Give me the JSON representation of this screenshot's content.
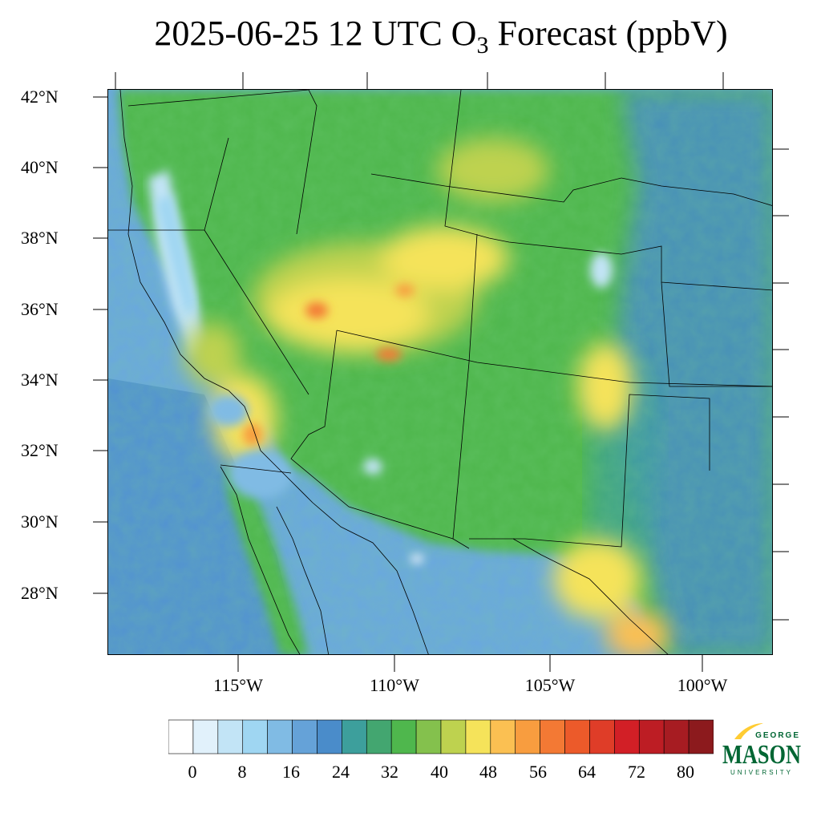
{
  "title": {
    "prefix": "2025-06-25 12 UTC O",
    "subscript": "3",
    "suffix": " Forecast (ppbV)"
  },
  "axes": {
    "lat_labels": [
      "42°N",
      "40°N",
      "38°N",
      "36°N",
      "34°N",
      "32°N",
      "30°N",
      "28°N"
    ],
    "lon_labels": [
      "115°W",
      "110°W",
      "105°W",
      "100°W"
    ]
  },
  "colorbar": {
    "unit": "ppbV",
    "labels": [
      "0",
      "8",
      "16",
      "24",
      "32",
      "40",
      "48",
      "56",
      "64",
      "72",
      "80"
    ],
    "colors": [
      "#ffffff",
      "#e1f1fb",
      "#c2e4f6",
      "#9fd6f2",
      "#80bbe4",
      "#65a2d8",
      "#4a8cca",
      "#3d9f9c",
      "#43a670",
      "#4fb74d",
      "#84c14d",
      "#bed24f",
      "#f5e35a",
      "#fbc052",
      "#f89d3f",
      "#f37934",
      "#ec5a2a",
      "#df3d28",
      "#d21f26",
      "#bd1d24",
      "#a71c22",
      "#8c1a1d"
    ]
  },
  "logo": {
    "line1": "GEORGE",
    "line2": "MASON",
    "line3": "UNIVERSITY",
    "colors": {
      "green": "#006633",
      "gold": "#ffcc33"
    }
  }
}
